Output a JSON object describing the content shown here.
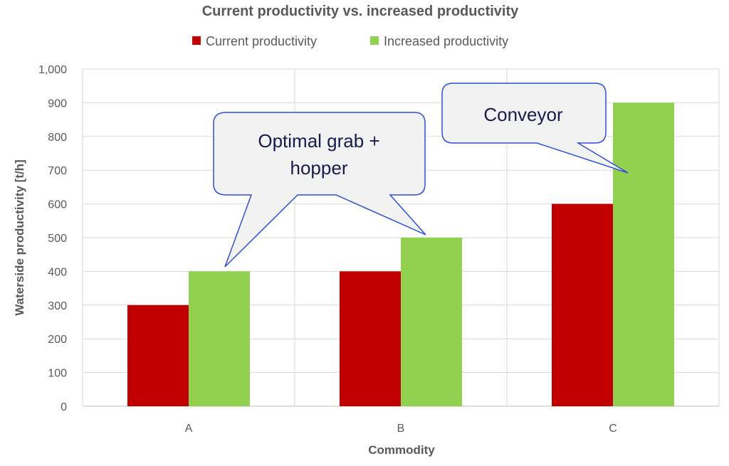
{
  "chart_data": {
    "type": "bar",
    "title": "Current productivity vs. increased productivity",
    "xlabel": "Commodity",
    "ylabel": "Waterside productivity [t/h]",
    "categories": [
      "A",
      "B",
      "C"
    ],
    "series": [
      {
        "name": "Current productivity",
        "values": [
          300,
          400,
          600
        ],
        "color": "#c00000"
      },
      {
        "name": "Increased productivity",
        "values": [
          400,
          500,
          900
        ],
        "color": "#92d050"
      }
    ],
    "ylim": [
      0,
      1000
    ],
    "yticks": [
      0,
      100,
      200,
      300,
      400,
      500,
      600,
      700,
      800,
      900,
      1000
    ],
    "ytick_labels": [
      "0",
      "100",
      "200",
      "300",
      "400",
      "500",
      "600",
      "700",
      "800",
      "900",
      "1,000"
    ],
    "grid": true,
    "legend_position": "top",
    "annotations": [
      {
        "text_lines": [
          "Optimal grab +",
          "hopper"
        ],
        "points_to": [
          {
            "category": "A",
            "series": 1
          },
          {
            "category": "B",
            "series": 1
          }
        ]
      },
      {
        "text_lines": [
          "Conveyor"
        ],
        "points_to": [
          {
            "category": "C",
            "series": 1
          }
        ]
      }
    ],
    "callout_fill": "#f2f2f2",
    "callout_stroke": "#2f4fd6"
  }
}
